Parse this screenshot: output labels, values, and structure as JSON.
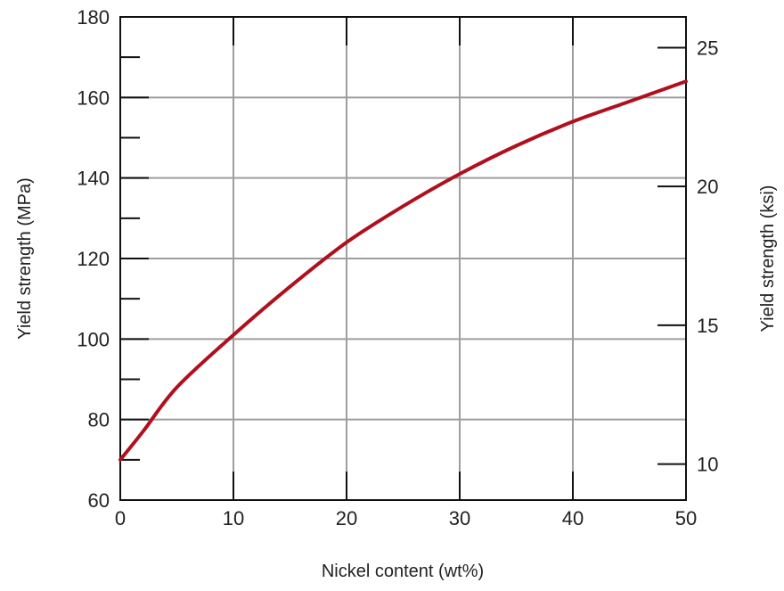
{
  "chart_data": {
    "type": "line",
    "xlabel": "Nickel content (wt%)",
    "ylabel": "Yield strength (MPa)",
    "y2label": "Yield strength (ksi)",
    "xlim": [
      0,
      50
    ],
    "ylim": [
      60,
      180
    ],
    "y2lim_ksi": [
      8.702,
      26.107
    ],
    "x_ticks": [
      0,
      10,
      20,
      30,
      40,
      50
    ],
    "y_ticks": [
      60,
      80,
      100,
      120,
      140,
      160,
      180
    ],
    "y2_ticks": [
      10,
      15,
      20,
      25
    ],
    "x_tick_labels": [
      "0",
      "10",
      "20",
      "30",
      "40",
      "50"
    ],
    "y_tick_labels": [
      "60",
      "80",
      "100",
      "120",
      "140",
      "160",
      "180"
    ],
    "y2_tick_labels": [
      "10",
      "15",
      "20",
      "25"
    ],
    "grid": true,
    "series": [
      {
        "color": "#b0101e",
        "x": [
          0,
          2,
          5,
          10,
          15,
          20,
          25,
          30,
          35,
          40,
          45,
          50
        ],
        "y": [
          70,
          77,
          88,
          101,
          113,
          124,
          133,
          141,
          148,
          154,
          159,
          164
        ]
      }
    ]
  }
}
